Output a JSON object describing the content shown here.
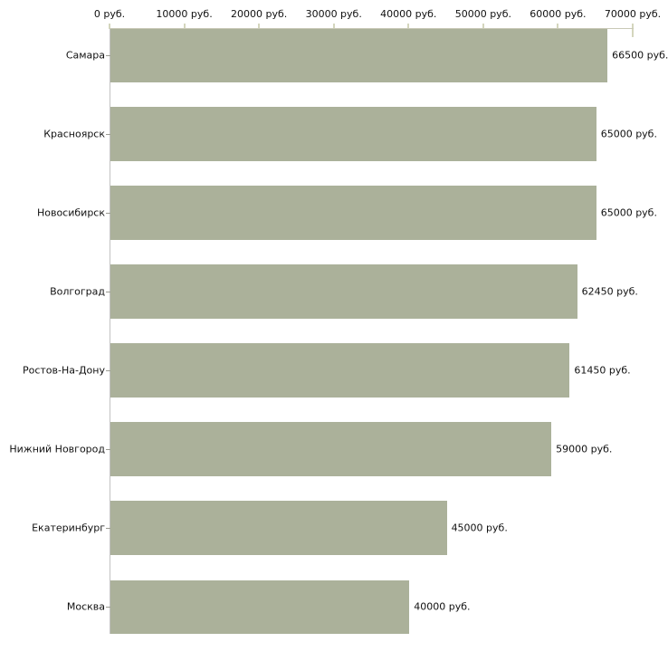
{
  "chart_data": {
    "type": "bar",
    "orientation": "horizontal",
    "title": "",
    "legend": "none",
    "grid": "off",
    "categories": [
      "Самара",
      "Красноярск",
      "Новосибирск",
      "Волгоград",
      "Ростов-На-Дону",
      "Нижний Новгород",
      "Екатеринбург",
      "Москва"
    ],
    "values": [
      66500,
      65000,
      65000,
      62450,
      61450,
      59000,
      45000,
      40000
    ],
    "value_labels": [
      "66500 руб.",
      "65000 руб.",
      "65000 руб.",
      "62450 руб.",
      "61450 руб.",
      "59000 руб.",
      "45000 руб.",
      "40000 руб."
    ],
    "x_axis": {
      "position": "top",
      "xlim": [
        0,
        70000
      ],
      "ticks": [
        0,
        10000,
        20000,
        30000,
        40000,
        50000,
        60000,
        70000
      ],
      "tick_labels": [
        "0 руб.",
        "10000 руб.",
        "20000 руб.",
        "30000 руб.",
        "40000 руб.",
        "50000 руб.",
        "60000 руб.",
        "70000 руб."
      ]
    },
    "colors": {
      "bar_fill": "#abb19a",
      "axis_line": "#c9c9b6",
      "tick_mark": "#d4d6bd",
      "left_axis_line": "#c2c2c2",
      "category_dash": "#9b9b93",
      "text": "#111111",
      "background": "#ffffff"
    }
  }
}
